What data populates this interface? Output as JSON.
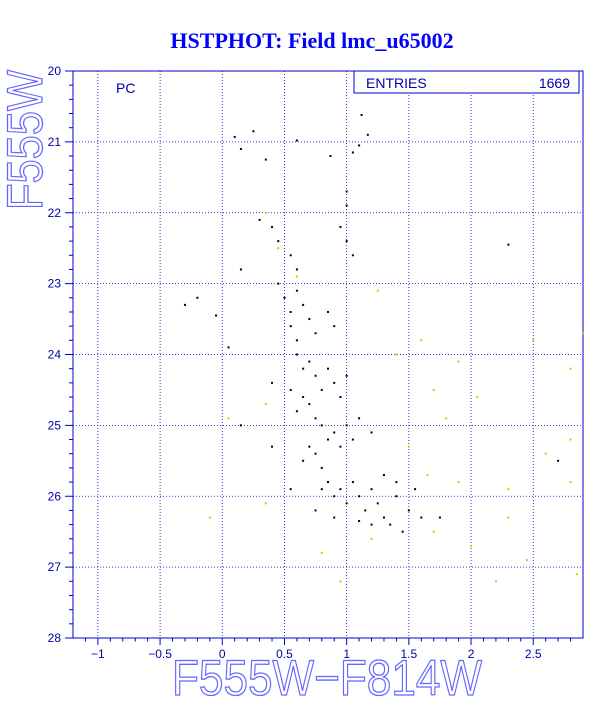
{
  "chart_data": {
    "type": "scatter",
    "title": "HSTPHOT: Field lmc_u65002",
    "xlabel": "F555W−F814W",
    "ylabel": "F555W",
    "xlim": [
      -1.2,
      2.9
    ],
    "ylim": [
      28,
      20
    ],
    "y_inverted": true,
    "x_ticks": [
      -1,
      -0.5,
      0,
      0.5,
      1,
      1.5,
      2,
      2.5
    ],
    "x_tick_labels": [
      "−1",
      "−0.5",
      "0",
      "0.5",
      "1",
      "1.5",
      "2",
      "2.5"
    ],
    "y_ticks": [
      20,
      21,
      22,
      23,
      24,
      25,
      26,
      27,
      28
    ],
    "y_tick_labels": [
      "20",
      "21",
      "22",
      "23",
      "24",
      "25",
      "26",
      "27",
      "28"
    ],
    "grid": true,
    "annotation": "PC",
    "stats_box": {
      "label": "ENTRIES",
      "value": "1669"
    },
    "colors": {
      "frame": "#0000cc",
      "grid": "#0000cc",
      "title": "#0000ff",
      "axis_title": "#6666ff",
      "points": "#000000",
      "points_faint": "#cccc00"
    },
    "series": [
      {
        "color": "#000000",
        "points": [
          [
            0.1,
            20.93
          ],
          [
            0.15,
            21.1
          ],
          [
            0.25,
            20.85
          ],
          [
            0.35,
            21.25
          ],
          [
            0.6,
            20.98
          ],
          [
            0.87,
            21.2
          ],
          [
            1.12,
            20.62
          ],
          [
            1.17,
            20.9
          ],
          [
            1.05,
            21.15
          ],
          [
            1.1,
            21.05
          ],
          [
            1.0,
            21.7
          ],
          [
            1.0,
            21.9
          ],
          [
            -0.3,
            23.3
          ],
          [
            -0.2,
            23.2
          ],
          [
            -0.05,
            23.45
          ],
          [
            0.15,
            22.8
          ],
          [
            0.4,
            22.2
          ],
          [
            0.45,
            22.4
          ],
          [
            0.3,
            22.1
          ],
          [
            0.55,
            22.6
          ],
          [
            0.6,
            22.8
          ],
          [
            0.95,
            22.2
          ],
          [
            1.0,
            22.4
          ],
          [
            1.05,
            22.6
          ],
          [
            2.3,
            22.45
          ],
          [
            0.45,
            23.0
          ],
          [
            0.5,
            23.2
          ],
          [
            0.55,
            23.4
          ],
          [
            0.6,
            23.1
          ],
          [
            0.65,
            23.3
          ],
          [
            0.55,
            23.6
          ],
          [
            0.6,
            23.8
          ],
          [
            0.7,
            23.5
          ],
          [
            0.75,
            23.7
          ],
          [
            0.85,
            23.4
          ],
          [
            0.9,
            23.6
          ],
          [
            0.05,
            23.9
          ],
          [
            0.4,
            24.4
          ],
          [
            0.6,
            24.0
          ],
          [
            0.65,
            24.2
          ],
          [
            0.7,
            24.1
          ],
          [
            0.75,
            24.3
          ],
          [
            0.8,
            24.5
          ],
          [
            0.85,
            24.2
          ],
          [
            0.9,
            24.4
          ],
          [
            0.95,
            24.6
          ],
          [
            1.0,
            24.3
          ],
          [
            0.7,
            24.7
          ],
          [
            0.75,
            24.9
          ],
          [
            0.65,
            24.6
          ],
          [
            0.6,
            24.8
          ],
          [
            0.55,
            24.5
          ],
          [
            0.8,
            25.0
          ],
          [
            0.85,
            25.2
          ],
          [
            0.9,
            25.1
          ],
          [
            0.95,
            25.3
          ],
          [
            1.0,
            25.0
          ],
          [
            1.05,
            25.2
          ],
          [
            0.75,
            25.4
          ],
          [
            0.8,
            25.6
          ],
          [
            0.7,
            25.3
          ],
          [
            0.65,
            25.5
          ],
          [
            1.1,
            24.9
          ],
          [
            1.2,
            25.1
          ],
          [
            0.15,
            25.0
          ],
          [
            0.4,
            25.3
          ],
          [
            0.85,
            25.8
          ],
          [
            0.9,
            26.0
          ],
          [
            0.95,
            25.9
          ],
          [
            1.0,
            26.1
          ],
          [
            1.05,
            25.8
          ],
          [
            1.1,
            26.0
          ],
          [
            1.15,
            26.2
          ],
          [
            1.2,
            25.9
          ],
          [
            1.25,
            26.1
          ],
          [
            1.3,
            26.3
          ],
          [
            0.8,
            25.9
          ],
          [
            0.75,
            26.2
          ],
          [
            1.4,
            26.0
          ],
          [
            1.5,
            26.2
          ],
          [
            1.35,
            26.4
          ],
          [
            1.2,
            26.4
          ],
          [
            1.1,
            26.35
          ],
          [
            1.6,
            26.3
          ],
          [
            1.45,
            26.5
          ],
          [
            1.3,
            25.7
          ],
          [
            1.4,
            25.8
          ],
          [
            1.55,
            25.9
          ],
          [
            1.75,
            26.3
          ],
          [
            0.55,
            25.9
          ],
          [
            0.9,
            26.3
          ],
          [
            2.7,
            25.5
          ]
        ]
      },
      {
        "color": "#cccc00",
        "points": [
          [
            0.35,
            22.0
          ],
          [
            0.45,
            22.5
          ],
          [
            0.6,
            22.9
          ],
          [
            1.25,
            23.1
          ],
          [
            1.6,
            23.8
          ],
          [
            1.9,
            24.1
          ],
          [
            2.05,
            24.6
          ],
          [
            2.5,
            23.8
          ],
          [
            2.8,
            24.2
          ],
          [
            2.9,
            23.7
          ],
          [
            1.7,
            24.5
          ],
          [
            1.4,
            24.0
          ],
          [
            1.8,
            24.9
          ],
          [
            0.05,
            24.9
          ],
          [
            0.35,
            24.7
          ],
          [
            1.5,
            25.3
          ],
          [
            2.6,
            25.4
          ],
          [
            2.8,
            25.2
          ],
          [
            1.65,
            25.7
          ],
          [
            1.9,
            25.8
          ],
          [
            2.3,
            25.9
          ],
          [
            2.8,
            25.8
          ],
          [
            1.7,
            26.5
          ],
          [
            2.0,
            26.7
          ],
          [
            2.3,
            26.3
          ],
          [
            1.2,
            26.6
          ],
          [
            0.35,
            26.1
          ],
          [
            -0.1,
            26.3
          ],
          [
            2.45,
            26.9
          ],
          [
            2.85,
            27.1
          ],
          [
            2.2,
            27.2
          ],
          [
            0.95,
            27.2
          ],
          [
            0.8,
            26.8
          ]
        ]
      }
    ]
  }
}
